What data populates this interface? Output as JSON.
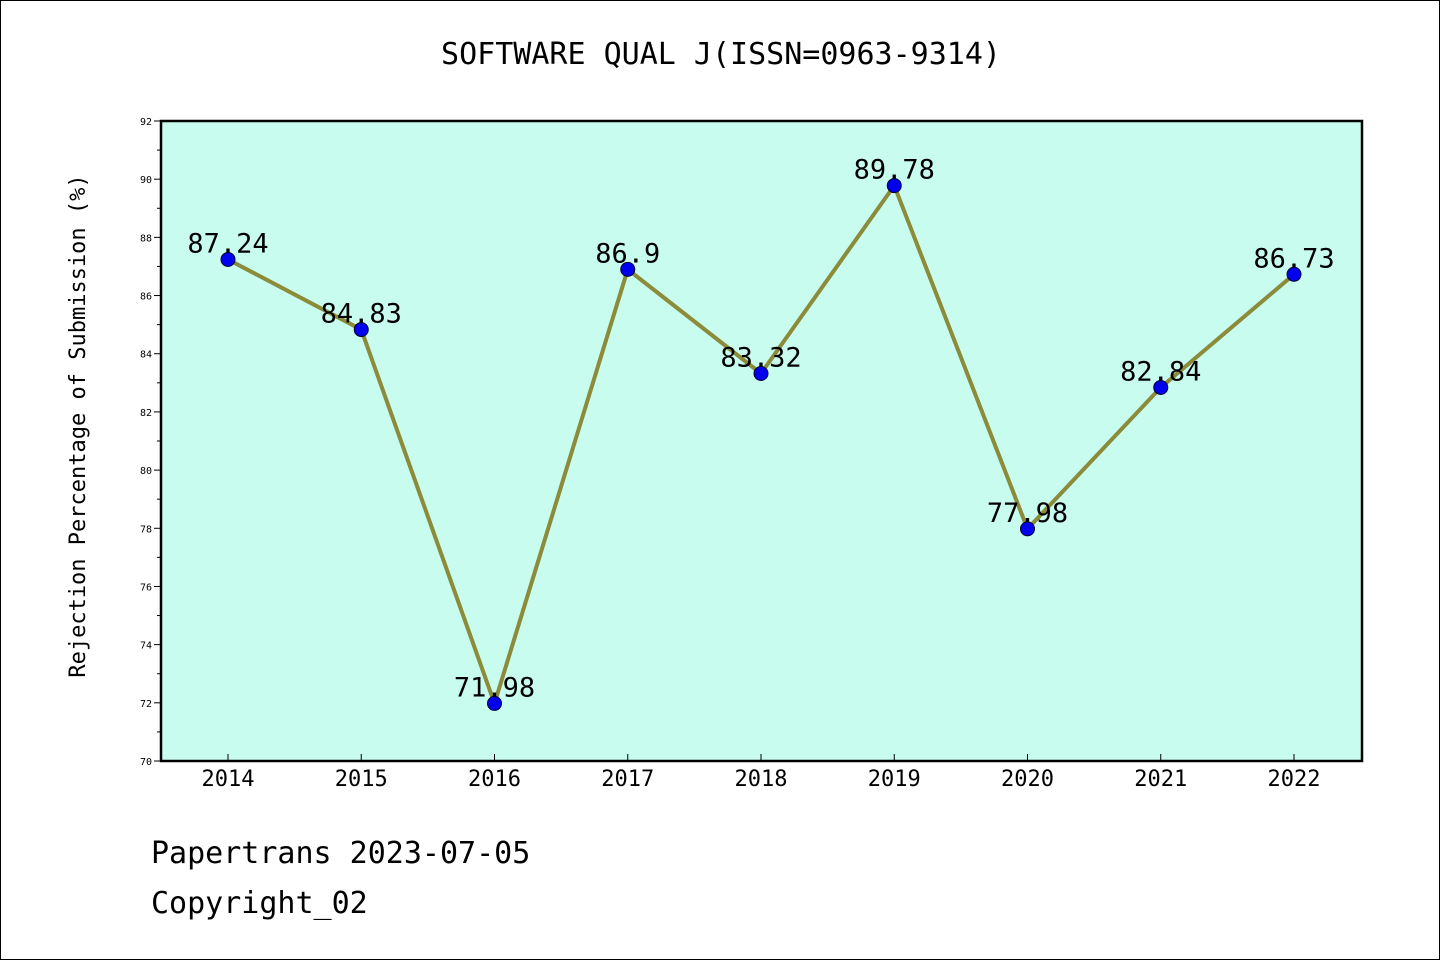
{
  "chart_data": {
    "type": "line",
    "title": "SOFTWARE QUAL J(ISSN=0963-9314)",
    "xlabel": "",
    "ylabel": "Rejection Percentage of Submission (%)",
    "categories": [
      "2014",
      "2015",
      "2016",
      "2017",
      "2018",
      "2019",
      "2020",
      "2021",
      "2022"
    ],
    "values": [
      87.24,
      84.83,
      71.98,
      86.9,
      83.32,
      89.78,
      77.98,
      82.84,
      86.73
    ],
    "data_labels": [
      "87.24",
      "84.83",
      "71.98",
      "86.9",
      "83.32",
      "89.78",
      "77.98",
      "82.84",
      "86.73"
    ],
    "ylim": [
      70,
      92
    ],
    "yticks": [
      "70",
      "72",
      "74",
      "76",
      "78",
      "80",
      "82",
      "84",
      "86",
      "88",
      "90",
      "92"
    ],
    "grid": false,
    "colors": {
      "plot_background": "#c8fcee",
      "line": "#8b8b3a",
      "marker": "#0000ee"
    }
  },
  "footer": {
    "line1": "Papertrans 2023-07-05",
    "line2": "Copyright_02"
  }
}
